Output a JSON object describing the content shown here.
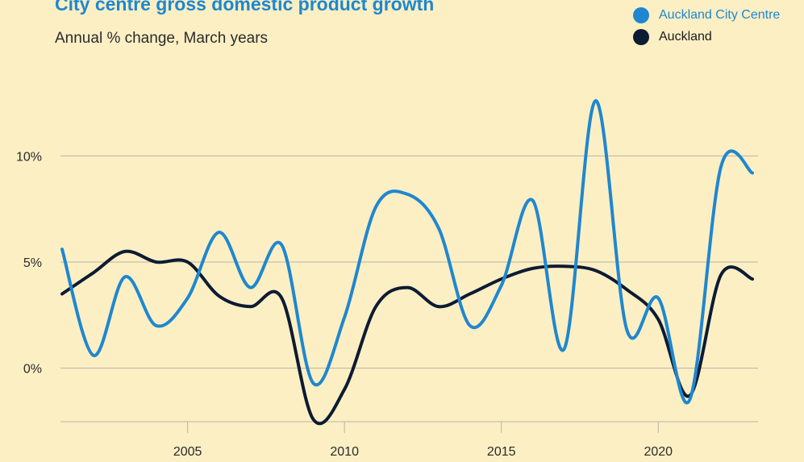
{
  "chart_data": {
    "type": "line",
    "title": "City centre gross domestic product growth",
    "subtitle": "Annual % change, March years",
    "xlabel": "",
    "ylabel": "",
    "xlim": [
      2001,
      2023
    ],
    "ylim": [
      -2.6,
      12.6
    ],
    "x_ticks": [
      2005,
      2010,
      2015,
      2020
    ],
    "x_tick_labels": [
      "2005",
      "2010",
      "2015",
      "2020"
    ],
    "y_ticks": [
      0,
      5,
      10
    ],
    "y_tick_labels": [
      "0%",
      "5%",
      "10%"
    ],
    "grid": "horizontal",
    "legend_position": "top-right",
    "x": [
      2001,
      2002,
      2003,
      2004,
      2005,
      2006,
      2007,
      2008,
      2009,
      2010,
      2011,
      2012,
      2013,
      2014,
      2015,
      2016,
      2017,
      2018,
      2019,
      2020,
      2021,
      2022,
      2023
    ],
    "series": [
      {
        "name": "Auckland City Centre",
        "color": "#1f87cf",
        "values": [
          5.6,
          0.6,
          4.3,
          2.0,
          3.3,
          6.4,
          3.8,
          5.8,
          -0.7,
          2.4,
          7.6,
          8.2,
          6.6,
          2.0,
          3.9,
          7.9,
          0.9,
          12.6,
          1.8,
          3.3,
          -1.5,
          9.5,
          9.2
        ]
      },
      {
        "name": "Auckland",
        "color": "#0d1b33",
        "values": [
          3.5,
          4.5,
          5.5,
          5.0,
          5.0,
          3.4,
          2.9,
          3.3,
          -2.4,
          -1.0,
          2.9,
          3.8,
          2.9,
          3.5,
          4.2,
          4.7,
          4.8,
          4.6,
          3.7,
          2.3,
          -1.3,
          4.4,
          4.2
        ]
      }
    ]
  }
}
